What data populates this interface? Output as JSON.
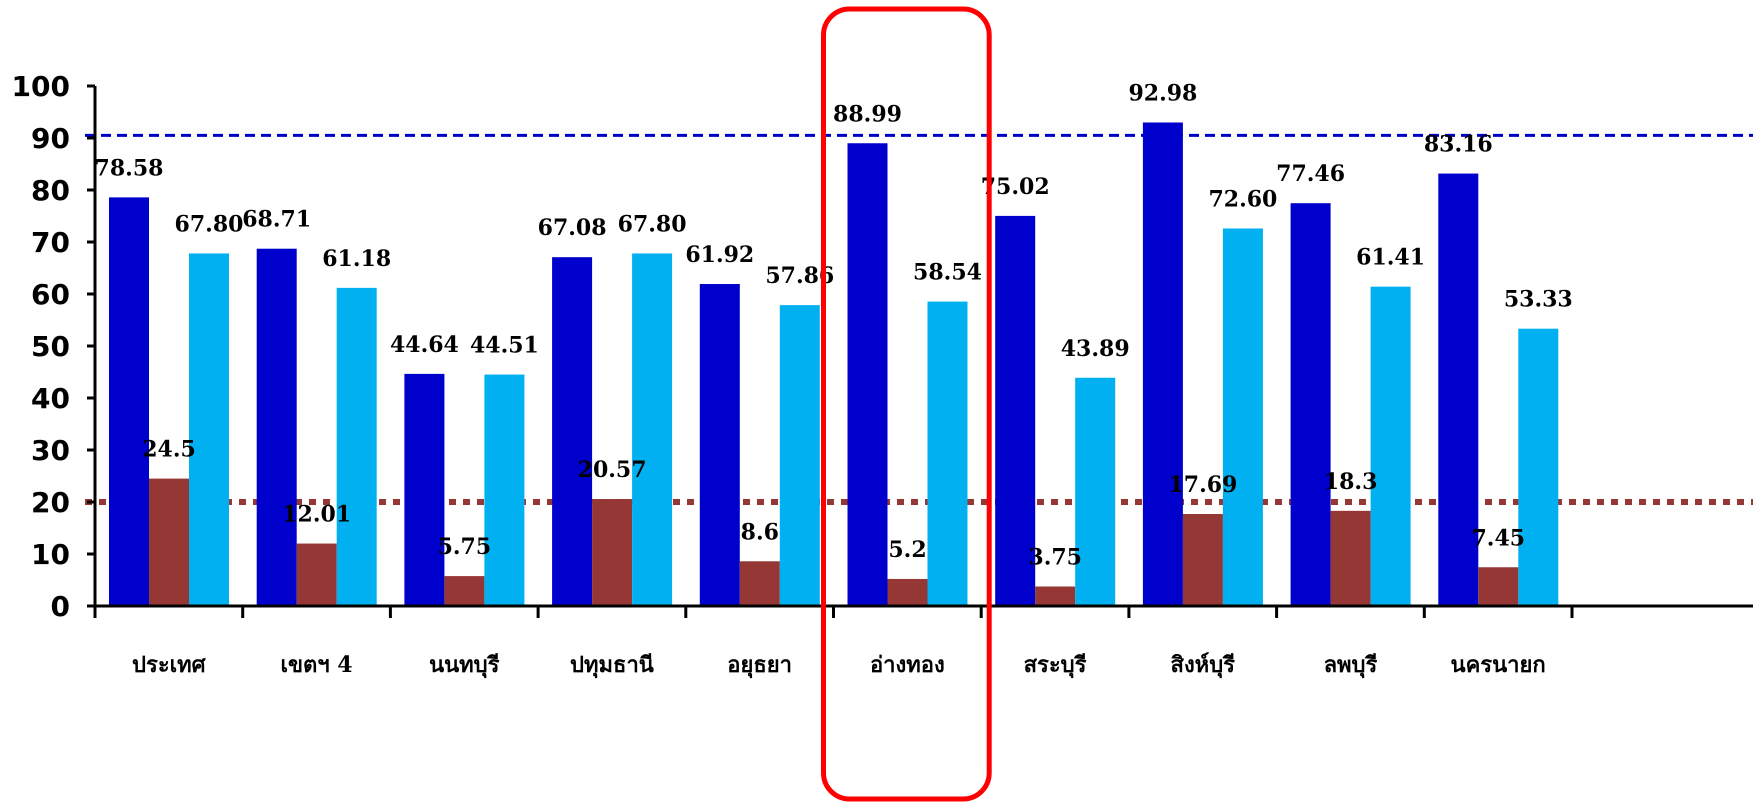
{
  "chart_data": {
    "type": "bar",
    "title": "",
    "xlabel": "",
    "ylabel": "",
    "categories": [
      "ประเทศ",
      "เขตฯ 4",
      "นนทบุรี",
      "ปทุมธานี",
      "อยุธยา",
      "อ่างทอง",
      "สระบุรี",
      "สิงห์บุรี",
      "ลพบุรี",
      "นครนายก"
    ],
    "series": [
      {
        "color": "#0000CC",
        "values": [
          78.58,
          68.71,
          44.64,
          67.08,
          61.92,
          88.99,
          75.02,
          92.98,
          77.46,
          83.16
        ],
        "labels": [
          "78.58",
          "68.71",
          "44.64",
          "67.08",
          "61.92",
          "88.99",
          "75.02",
          "92.98",
          "77.46",
          "83.16"
        ]
      },
      {
        "color": "#953735",
        "values": [
          24.5,
          12.01,
          5.75,
          20.57,
          8.6,
          5.2,
          3.75,
          17.69,
          18.3,
          7.45
        ],
        "labels": [
          "24.5",
          "12.01",
          "5.75",
          "20.57",
          "8.6",
          "5.2",
          "3.75",
          "17.69",
          "18.3",
          "7.45"
        ]
      },
      {
        "color": "#00B0F0",
        "values": [
          67.8,
          61.18,
          44.51,
          67.8,
          57.86,
          58.54,
          43.89,
          72.6,
          61.41,
          53.33
        ],
        "labels": [
          "67.80",
          "61.18",
          "44.51",
          "67.80",
          "57.86",
          "58.54",
          "43.89",
          "72.60",
          "61.41",
          "53.33"
        ]
      }
    ],
    "ylim": [
      0,
      100
    ],
    "yticks": [
      "0",
      "10",
      "20",
      "30",
      "40",
      "50",
      "60",
      "70",
      "80",
      "90",
      "100"
    ],
    "reference_lines": [
      {
        "value": 90.5,
        "color": "#0000CC",
        "style": "dashed"
      },
      {
        "value": 20,
        "color": "#953735",
        "style": "dotted"
      }
    ],
    "highlight": {
      "category": "อ่างทอง",
      "color": "#FF0000"
    },
    "grid": false,
    "legend": "none"
  }
}
